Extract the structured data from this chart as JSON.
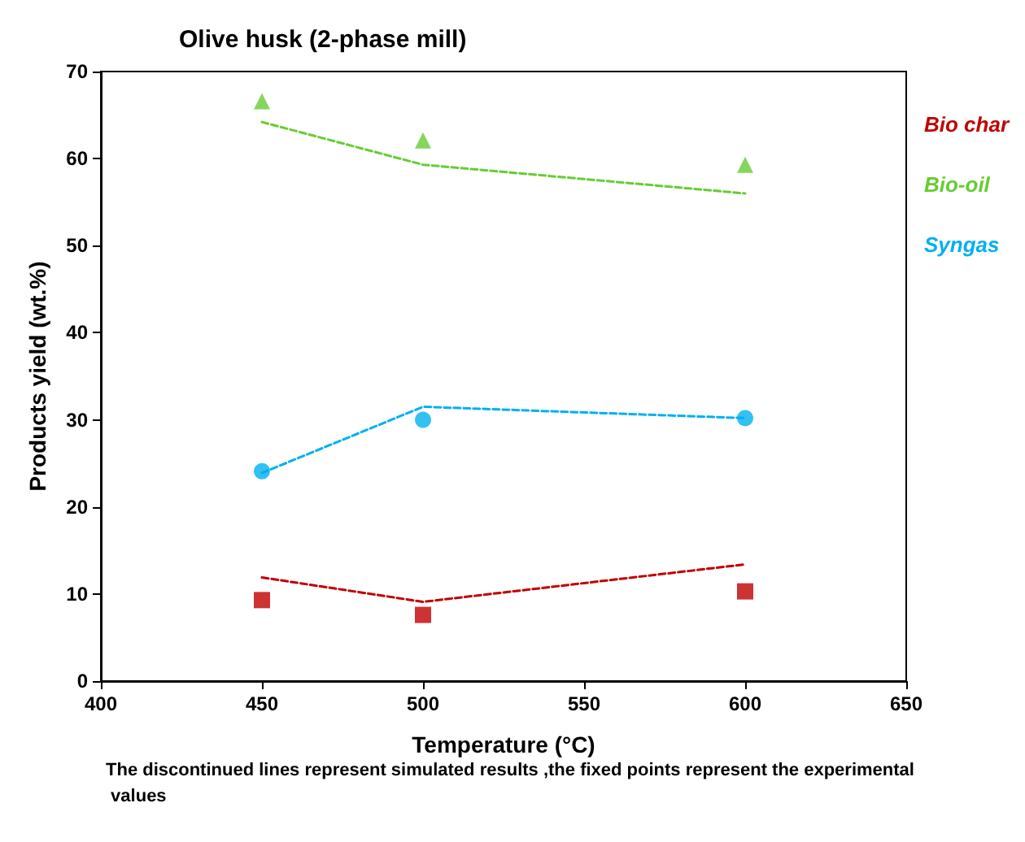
{
  "chart_data": {
    "type": "line",
    "title": "Olive husk (2-phase mill)",
    "xlabel": "Temperature (°C)",
    "ylabel": "Products yield (wt.%)",
    "xlim": [
      400,
      650
    ],
    "xticks": [
      400,
      450,
      500,
      550,
      600,
      650
    ],
    "ylim": [
      0,
      70
    ],
    "yticks": [
      0,
      10,
      20,
      30,
      40,
      50,
      60,
      70
    ],
    "grid": false,
    "legend": "right",
    "line_style": "dashed",
    "series": [
      {
        "name": "Bio char",
        "color": "#c00000",
        "x": [
          450,
          500,
          600
        ],
        "values": [
          11.9,
          9.1,
          13.4
        ]
      },
      {
        "name": "Bio-oil",
        "color": "#66cc33",
        "x": [
          450,
          500,
          600
        ],
        "values": [
          64.2,
          59.3,
          56.0
        ]
      },
      {
        "name": "Syngas",
        "color": "#00b0f0",
        "x": [
          450,
          500,
          600
        ],
        "values": [
          23.9,
          31.5,
          30.2
        ]
      },
      {
        "color": "#c00000",
        "type": "scatter",
        "marker": "square",
        "x": [
          450,
          500,
          600
        ],
        "values": [
          9.3,
          7.6,
          10.3
        ]
      },
      {
        "color": "#66cc33",
        "type": "scatter",
        "marker": "triangle",
        "x": [
          450,
          500,
          600
        ],
        "values": [
          66.6,
          62.1,
          59.3
        ]
      },
      {
        "color": "#00b0f0",
        "type": "scatter",
        "marker": "circle",
        "x": [
          450,
          500,
          600
        ],
        "values": [
          24.1,
          30.0,
          30.2
        ]
      }
    ],
    "annotations": [
      "The discontinued lines represent simulated results ,the fixed points represent the experimental values"
    ]
  }
}
